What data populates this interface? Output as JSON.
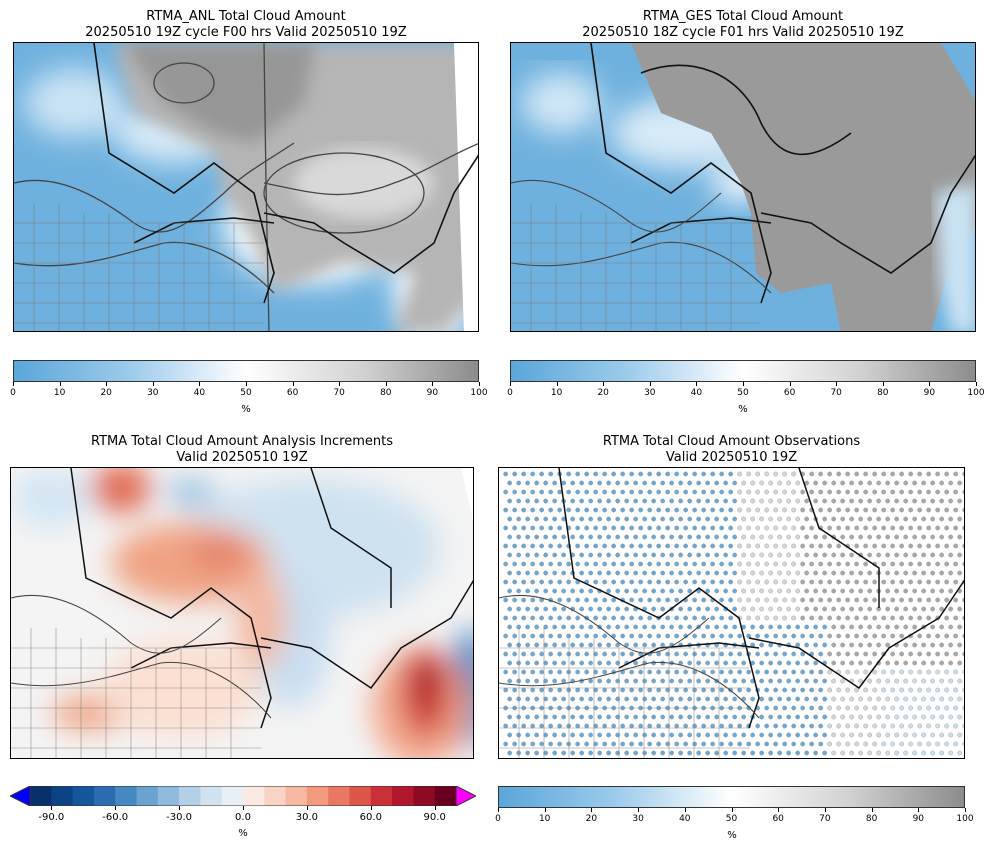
{
  "panels": {
    "anl": {
      "title_line1": "RTMA_ANL Total Cloud Amount",
      "title_line2": "20250510 19Z cycle F00 hrs Valid 20250510 19Z"
    },
    "ges": {
      "title_line1": "RTMA_GES Total Cloud Amount",
      "title_line2": "20250510 18Z cycle F01 hrs Valid 20250510 19Z"
    },
    "inc": {
      "title_line1": "RTMA Total Cloud Amount Analysis Increments",
      "title_line2": "Valid 20250510 19Z"
    },
    "obs": {
      "title_line1": "RTMA Total Cloud Amount Observations",
      "title_line2": "Valid 20250510 19Z"
    }
  },
  "colorbars": {
    "cloud": {
      "ticks": [
        "0",
        "10",
        "20",
        "30",
        "40",
        "50",
        "60",
        "70",
        "80",
        "90",
        "100"
      ],
      "unit": "%",
      "min": 0,
      "max": 100
    },
    "increment": {
      "ticks": [
        "-90.0",
        "-60.0",
        "-30.0",
        "0.0",
        "30.0",
        "60.0",
        "90.0"
      ],
      "tick_values": [
        -90,
        -60,
        -30,
        0,
        30,
        60,
        90
      ],
      "unit": "%",
      "min": -100,
      "max": 100,
      "levels": 20
    }
  },
  "colors": {
    "cloud_low": "#5ba6d9",
    "cloud_mid": "#ffffff",
    "cloud_high": "#8c8c8c",
    "inc_neg": "#08306b",
    "inc_zero": "#f7f7f7",
    "inc_pos": "#67001f",
    "extend_neg": "#0000ff",
    "extend_pos": "#ff00ff"
  },
  "chart_data": [
    {
      "type": "heatmap",
      "title": "RTMA_ANL Total Cloud Amount 20250510 19Z cycle F00 hrs Valid 20250510 19Z",
      "colorbar_label": "%",
      "colorbar_range": [
        0,
        100
      ]
    },
    {
      "type": "heatmap",
      "title": "RTMA_GES Total Cloud Amount 20250510 18Z cycle F01 hrs Valid 20250510 19Z",
      "colorbar_label": "%",
      "colorbar_range": [
        0,
        100
      ]
    },
    {
      "type": "heatmap",
      "title": "RTMA Total Cloud Amount Analysis Increments Valid 20250510 19Z",
      "colorbar_label": "%",
      "colorbar_range": [
        -100,
        100
      ],
      "colorbar_ticks": [
        -90,
        -60,
        -30,
        0,
        30,
        60,
        90
      ]
    },
    {
      "type": "scatter",
      "title": "RTMA Total Cloud Amount Observations Valid 20250510 19Z",
      "colorbar_label": "%",
      "colorbar_range": [
        0,
        100
      ]
    }
  ]
}
